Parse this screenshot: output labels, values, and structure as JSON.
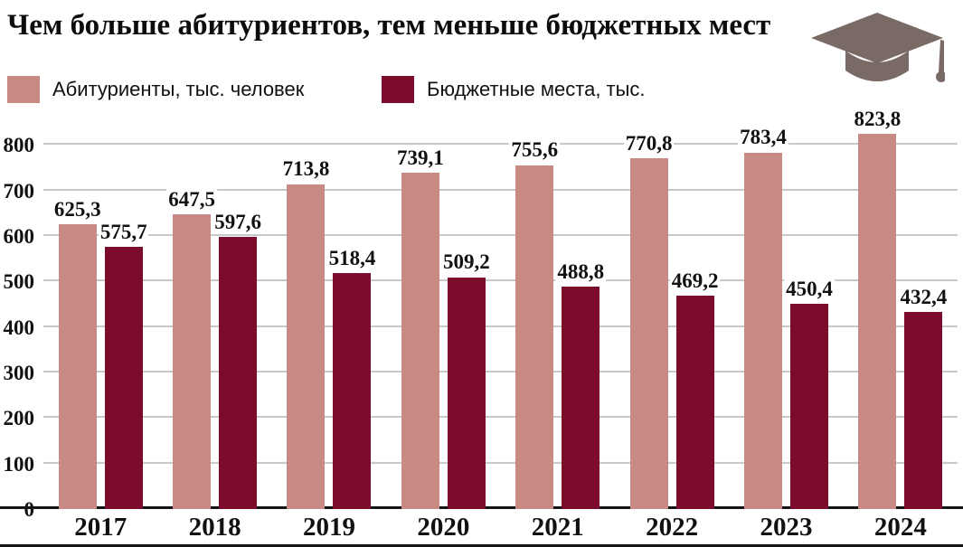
{
  "header": {
    "title": "Чем больше абитуриентов, тем меньше бюджетных мест"
  },
  "icons": {
    "graduation_cap": "graduation-cap-icon",
    "graduation_cap_color": "#7a6a66"
  },
  "colors": {
    "applicants_bar": "#ca8a84",
    "budget_bar": "#7b0c2c",
    "gridline": "#c9c9c9",
    "axis_line": "#141414"
  },
  "chart_data": {
    "type": "bar",
    "title": "Чем больше абитуриентов, тем меньше бюджетных мест",
    "categories": [
      "2017",
      "2018",
      "2019",
      "2020",
      "2021",
      "2022",
      "2023",
      "2024"
    ],
    "series": [
      {
        "name": "Абитуриенты, тыс. человек",
        "color": "#ca8a84",
        "values": [
          625.3,
          647.5,
          713.8,
          739.1,
          755.6,
          770.8,
          783.4,
          823.8
        ]
      },
      {
        "name": "Бюджетные места, тыс.",
        "color": "#7b0c2c",
        "values": [
          575.7,
          597.6,
          518.4,
          509.2,
          488.8,
          469.2,
          450.4,
          432.4
        ]
      }
    ],
    "y_ticks": [
      0,
      100,
      200,
      300,
      400,
      500,
      600,
      700,
      800
    ],
    "ylim": [
      0,
      840
    ],
    "xlabel": "",
    "ylabel": "",
    "grid": "horizontal",
    "legend_position": "top",
    "value_label_decimal_separator": ","
  }
}
